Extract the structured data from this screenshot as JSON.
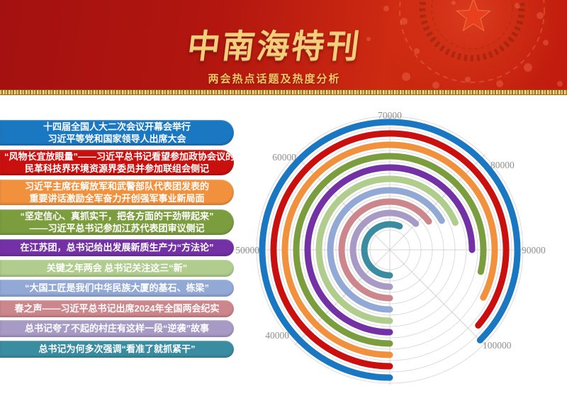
{
  "header": {
    "title": "中南海特刊",
    "subtitle": "两会热点话题及热度分析",
    "accent_gold": "#f3cf7c",
    "background_red": "#b2160f",
    "star_icon_color": "#e8401f"
  },
  "topics": {
    "items": [
      {
        "lines": [
          "十四届全国人大二次会议开幕会举行",
          "习近平等党和国家领导人出席大会"
        ],
        "color": "#1a78c2",
        "heat": 100000
      },
      {
        "lines": [
          "“风物长宜放眼量”——习近平总书记看望参加政协会议的",
          "民革科技界环境资源界委员并参加联组会侧记"
        ],
        "color": "#c9100e",
        "heat": 99000
      },
      {
        "lines": [
          "习近平主席在解放军和武警部队代表团发表的",
          "重要讲话激励全军奋力开创强军事业新局面"
        ],
        "color": "#f2913d",
        "heat": 96000
      },
      {
        "lines": [
          "“坚定信心、真抓实干，把各方面的干劲带起来”",
          "——习近平总书记参加江苏代表团审议侧记"
        ],
        "color": "#7c9d3e",
        "heat": 93000
      },
      {
        "lines": [
          "在江苏团，总书记给出发展新质生产力“方法论”"
        ],
        "color": "#7331a5",
        "heat": 90000
      },
      {
        "lines": [
          "关键之年两会 总书记关注这三“新”"
        ],
        "color": "#b0cd8e",
        "heat": 85000
      },
      {
        "lines": [
          "“大国工匠是我们中华民族大厦的基石、栋梁”"
        ],
        "color": "#92a8d5",
        "heat": 83500
      },
      {
        "lines": [
          "春之声——习近平总书记出席2024年全国两会纪实"
        ],
        "color": "#cd868b",
        "heat": 82000
      },
      {
        "lines": [
          "总书记夸了不起的村庄有这样一段“逆袭”故事"
        ],
        "color": "#a79ac5",
        "heat": 80000
      },
      {
        "lines": [
          "总书记为何多次强调“看准了就抓紧干”"
        ],
        "color": "#3a8ca1",
        "heat": 75000
      }
    ]
  },
  "chart_data": {
    "type": "bar",
    "variant": "polar-radial-bar",
    "title": "",
    "categories": [
      "十四届全国人大二次会议开幕会举行 习近平等党和国家领导人出席大会",
      "“风物长宜放眼量”——习近平总书记看望参加政协会议的民革科技界环境资源界委员并参加联组会侧记",
      "习近平主席在解放军和武警部队代表团发表的重要讲话激励全军奋力开创强军事业新局面",
      "“坚定信心、真抓实干，把各方面的干劲带起来”——习近平总书记参加江苏代表团审议侧记",
      "在江苏团，总书记给出发展新质生产力“方法论”",
      "关键之年两会 总书记关注这三“新”",
      "“大国工匠是我们中华民族大厦的基石、栋梁”",
      "春之声——习近平总书记出席2024年全国两会纪实",
      "总书记夸了不起的村庄有这样一段“逆袭”故事",
      "总书记为何多次强调“看准了就抓紧干”"
    ],
    "values": [
      100000,
      99000,
      96000,
      93000,
      90000,
      85000,
      83500,
      82000,
      80000,
      75000
    ],
    "colors": [
      "#1a78c2",
      "#c9100e",
      "#f2913d",
      "#7c9d3e",
      "#7331a5",
      "#b0cd8e",
      "#92a8d5",
      "#cd868b",
      "#a79ac5",
      "#3a8ca1"
    ],
    "angle_axis": {
      "start_value": 30000,
      "value_per_45_degrees": 10000,
      "start_position": "bottom",
      "direction": "clockwise",
      "tick_labels": [
        "40000",
        "50000",
        "60000",
        "70000",
        "80000",
        "90000",
        "100000"
      ]
    },
    "radial_axis": {
      "order": "outermost-to-innermost"
    },
    "grid": true,
    "legend": "left-topic-list",
    "grid_color": "#d4d4d4",
    "tick_label_color": "#8f8f8f"
  }
}
